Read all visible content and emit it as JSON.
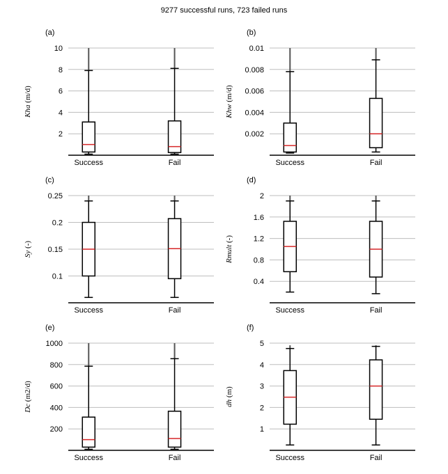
{
  "title": "9277 successful runs, 723 failed runs",
  "chart_data": [
    {
      "type": "box",
      "panel_label": "(a)",
      "ylabel_sym": "Kha",
      "ylabel_unit": " (m/d)",
      "categories": [
        "Success",
        "Fail"
      ],
      "ylim": [
        0,
        10
      ],
      "yticks": [
        2,
        4,
        6,
        8,
        10
      ],
      "ytick_labels": [
        "2",
        "4",
        "6",
        "8",
        "10"
      ],
      "boxes": [
        {
          "whislo": 0.1,
          "q1": 0.3,
          "med": 1.0,
          "q3": 3.1,
          "whishi": 7.9,
          "flier_max": 10
        },
        {
          "whislo": 0.1,
          "q1": 0.25,
          "med": 0.8,
          "q3": 3.2,
          "whishi": 8.1,
          "flier_max": 10
        }
      ]
    },
    {
      "type": "box",
      "panel_label": "(b)",
      "ylabel_sym": "Khw",
      "ylabel_unit": " (m/d)",
      "categories": [
        "Success",
        "Fail"
      ],
      "ylim": [
        0,
        0.01
      ],
      "yticks": [
        0.002,
        0.004,
        0.006,
        0.008,
        0.01
      ],
      "ytick_labels": [
        "0.002",
        "0.004",
        "0.006",
        "0.008",
        "0.01"
      ],
      "boxes": [
        {
          "whislo": 0.0002,
          "q1": 0.0003,
          "med": 0.0009,
          "q3": 0.003,
          "whishi": 0.0078,
          "flier_max": 0.01
        },
        {
          "whislo": 0.0003,
          "q1": 0.0007,
          "med": 0.002,
          "q3": 0.0053,
          "whishi": 0.0089,
          "flier_max": 0.01
        }
      ]
    },
    {
      "type": "box",
      "panel_label": "(c)",
      "ylabel_sym": "Sy",
      "ylabel_unit": " (-)",
      "categories": [
        "Success",
        "Fail"
      ],
      "ylim": [
        0.05,
        0.25
      ],
      "yticks": [
        0.1,
        0.15,
        0.2,
        0.25
      ],
      "ytick_labels": [
        "0.1",
        "0.15",
        "0.2",
        "0.25"
      ],
      "boxes": [
        {
          "whislo": 0.06,
          "q1": 0.1,
          "med": 0.15,
          "q3": 0.2,
          "whishi": 0.24,
          "flier_max": 0.25
        },
        {
          "whislo": 0.06,
          "q1": 0.095,
          "med": 0.151,
          "q3": 0.207,
          "whishi": 0.24,
          "flier_max": 0.25
        }
      ]
    },
    {
      "type": "box",
      "panel_label": "(d)",
      "ylabel_sym": "Rmult",
      "ylabel_unit": " (-)",
      "categories": [
        "Success",
        "Fail"
      ],
      "ylim": [
        0,
        2
      ],
      "yticks": [
        0.4,
        0.8,
        1.2,
        1.6,
        2
      ],
      "ytick_labels": [
        "0.4",
        "0.8",
        "1.2",
        "1.6",
        "2"
      ],
      "boxes": [
        {
          "whislo": 0.2,
          "q1": 0.58,
          "med": 1.05,
          "q3": 1.52,
          "whishi": 1.9,
          "flier_max": 2
        },
        {
          "whislo": 0.17,
          "q1": 0.48,
          "med": 1.0,
          "q3": 1.52,
          "whishi": 1.9,
          "flier_max": 2
        }
      ]
    },
    {
      "type": "box",
      "panel_label": "(e)",
      "ylabel_sym": "Dc",
      "ylabel_unit": " (m2/d)",
      "categories": [
        "Success",
        "Fail"
      ],
      "ylim": [
        0,
        1000
      ],
      "yticks": [
        200,
        400,
        600,
        800,
        1000
      ],
      "ytick_labels": [
        "200",
        "400",
        "600",
        "800",
        "1000"
      ],
      "boxes": [
        {
          "whislo": 10,
          "q1": 30,
          "med": 100,
          "q3": 310,
          "whishi": 785,
          "flier_max": 1000
        },
        {
          "whislo": 10,
          "q1": 30,
          "med": 110,
          "q3": 365,
          "whishi": 855,
          "flier_max": 1000
        }
      ]
    },
    {
      "type": "box",
      "panel_label": "(f)",
      "ylabel_sym": "dh",
      "ylabel_unit": " (m)",
      "categories": [
        "Success",
        "Fail"
      ],
      "ylim": [
        0,
        5
      ],
      "yticks": [
        1,
        2,
        3,
        4,
        5
      ],
      "ytick_labels": [
        "1",
        "2",
        "3",
        "4",
        "5"
      ],
      "boxes": [
        {
          "whislo": 0.25,
          "q1": 1.22,
          "med": 2.48,
          "q3": 3.72,
          "whishi": 4.75,
          "flier_max": 4.9
        },
        {
          "whislo": 0.25,
          "q1": 1.45,
          "med": 3.0,
          "q3": 4.22,
          "whishi": 4.85,
          "flier_max": 4.9
        }
      ]
    }
  ],
  "colors": {
    "grid": "#bdbdbd",
    "box": "#000000",
    "median": "#d62728",
    "axis": "#000000",
    "flier": "#555555"
  }
}
